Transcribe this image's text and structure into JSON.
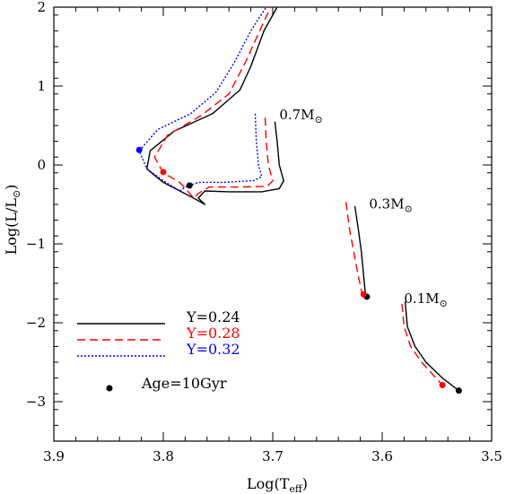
{
  "chart_data": {
    "type": "line",
    "xlabel": "Log(T_eff)",
    "ylabel": "Log(L/L⊙)",
    "xlim": [
      3.9,
      3.5
    ],
    "ylim": [
      -3.5,
      2.0
    ],
    "x_inverted": true,
    "xticks": [
      "3.9",
      "3.8",
      "3.7",
      "3.6",
      "3.5"
    ],
    "xtick_values": [
      3.9,
      3.8,
      3.7,
      3.6,
      3.5
    ],
    "yticks": [
      "2",
      "1",
      "0",
      "−1",
      "−2",
      "−3"
    ],
    "ytick_values": [
      2,
      1,
      0,
      -1,
      -2,
      -3
    ],
    "grid": false,
    "legend_position": "bottom-left",
    "series": [
      {
        "name": "Y=0.24",
        "color": "#000000",
        "dash": "solid",
        "tracks": [
          {
            "mass": "0.7M⊙",
            "points": [
              [
                3.698,
                0.55
              ],
              [
                3.696,
                0.3
              ],
              [
                3.694,
                0.0
              ],
              [
                3.69,
                -0.2
              ],
              [
                3.694,
                -0.3
              ],
              [
                3.71,
                -0.34
              ],
              [
                3.74,
                -0.34
              ],
              [
                3.762,
                -0.33
              ],
              [
                3.768,
                -0.42
              ],
              [
                3.762,
                -0.5
              ],
              [
                3.775,
                -0.4
              ],
              [
                3.8,
                -0.22
              ],
              [
                3.815,
                -0.05
              ],
              [
                3.812,
                0.18
              ],
              [
                3.79,
                0.43
              ],
              [
                3.755,
                0.65
              ],
              [
                3.73,
                0.95
              ],
              [
                3.72,
                1.25
              ],
              [
                3.708,
                1.7
              ],
              [
                3.696,
                2.0
              ]
            ]
          },
          {
            "mass": "0.3M⊙",
            "points": [
              [
                3.625,
                -0.52
              ],
              [
                3.622,
                -0.8
              ],
              [
                3.619,
                -1.1
              ],
              [
                3.617,
                -1.4
              ],
              [
                3.615,
                -1.68
              ]
            ]
          },
          {
            "mass": "0.1M⊙",
            "points": [
              [
                3.579,
                -1.73
              ],
              [
                3.577,
                -2.05
              ],
              [
                3.57,
                -2.3
              ],
              [
                3.56,
                -2.5
              ],
              [
                3.545,
                -2.7
              ],
              [
                3.53,
                -2.86
              ]
            ]
          }
        ],
        "age_points": [
          [
            3.776,
            -0.26
          ],
          [
            3.614,
            -1.67
          ],
          [
            3.53,
            -2.86
          ]
        ]
      },
      {
        "name": "Y=0.28",
        "color": "#ff0000",
        "dash": "dashed",
        "tracks": [
          {
            "mass": "0.7M⊙",
            "points": [
              [
                3.707,
                0.6
              ],
              [
                3.706,
                0.3
              ],
              [
                3.704,
                0.0
              ],
              [
                3.7,
                -0.2
              ],
              [
                3.705,
                -0.27
              ],
              [
                3.73,
                -0.28
              ],
              [
                3.758,
                -0.28
              ],
              [
                3.768,
                -0.36
              ],
              [
                3.772,
                -0.42
              ],
              [
                3.785,
                -0.22
              ],
              [
                3.8,
                -0.1
              ],
              [
                3.808,
                0.1
              ],
              [
                3.796,
                0.38
              ],
              [
                3.765,
                0.63
              ],
              [
                3.74,
                0.9
              ],
              [
                3.725,
                1.3
              ],
              [
                3.712,
                1.7
              ],
              [
                3.702,
                2.0
              ]
            ]
          },
          {
            "mass": "0.3M⊙",
            "points": [
              [
                3.633,
                -0.47
              ],
              [
                3.63,
                -0.8
              ],
              [
                3.626,
                -1.1
              ],
              [
                3.622,
                -1.4
              ],
              [
                3.618,
                -1.65
              ]
            ]
          },
          {
            "mass": "0.1M⊙",
            "points": [
              [
                3.582,
                -1.76
              ],
              [
                3.58,
                -2.05
              ],
              [
                3.574,
                -2.3
              ],
              [
                3.564,
                -2.5
              ],
              [
                3.545,
                -2.79
              ]
            ]
          }
        ],
        "age_points": [
          [
            3.8,
            -0.09
          ],
          [
            3.617,
            -1.64
          ],
          [
            3.545,
            -2.79
          ]
        ]
      },
      {
        "name": "Y=0.32",
        "color": "#0000ff",
        "dash": "dotted",
        "tracks": [
          {
            "mass": "0.7M⊙",
            "points": [
              [
                3.716,
                0.65
              ],
              [
                3.715,
                0.3
              ],
              [
                3.713,
                0.0
              ],
              [
                3.71,
                -0.15
              ],
              [
                3.718,
                -0.2
              ],
              [
                3.745,
                -0.22
              ],
              [
                3.768,
                -0.22
              ],
              [
                3.78,
                -0.28
              ],
              [
                3.785,
                -0.33
              ],
              [
                3.8,
                -0.2
              ],
              [
                3.815,
                -0.05
              ],
              [
                3.822,
                0.18
              ],
              [
                3.805,
                0.45
              ],
              [
                3.775,
                0.65
              ],
              [
                3.752,
                0.92
              ],
              [
                3.735,
                1.3
              ],
              [
                3.72,
                1.7
              ],
              [
                3.706,
                2.0
              ]
            ]
          }
        ],
        "age_points": [
          [
            3.822,
            0.19
          ]
        ]
      }
    ],
    "annotations": [
      {
        "text": "0.7M",
        "sun": "⊙",
        "x": 3.694,
        "y": 0.58
      },
      {
        "text": "0.3M",
        "sun": "⊙",
        "x": 3.612,
        "y": -0.55
      },
      {
        "text": "0.1M",
        "sun": "⊙",
        "x": 3.58,
        "y": -1.75
      }
    ],
    "legend": [
      {
        "label": "Y=0.24",
        "color": "#000000",
        "dash": "solid"
      },
      {
        "label": "Y=0.28",
        "color": "#ff0000",
        "dash": "dashed"
      },
      {
        "label": "Y=0.32",
        "color": "#0000ff",
        "dash": "dotted"
      },
      {
        "label": "Age=10Gyr",
        "color": "#000000",
        "marker": "dot"
      }
    ]
  }
}
